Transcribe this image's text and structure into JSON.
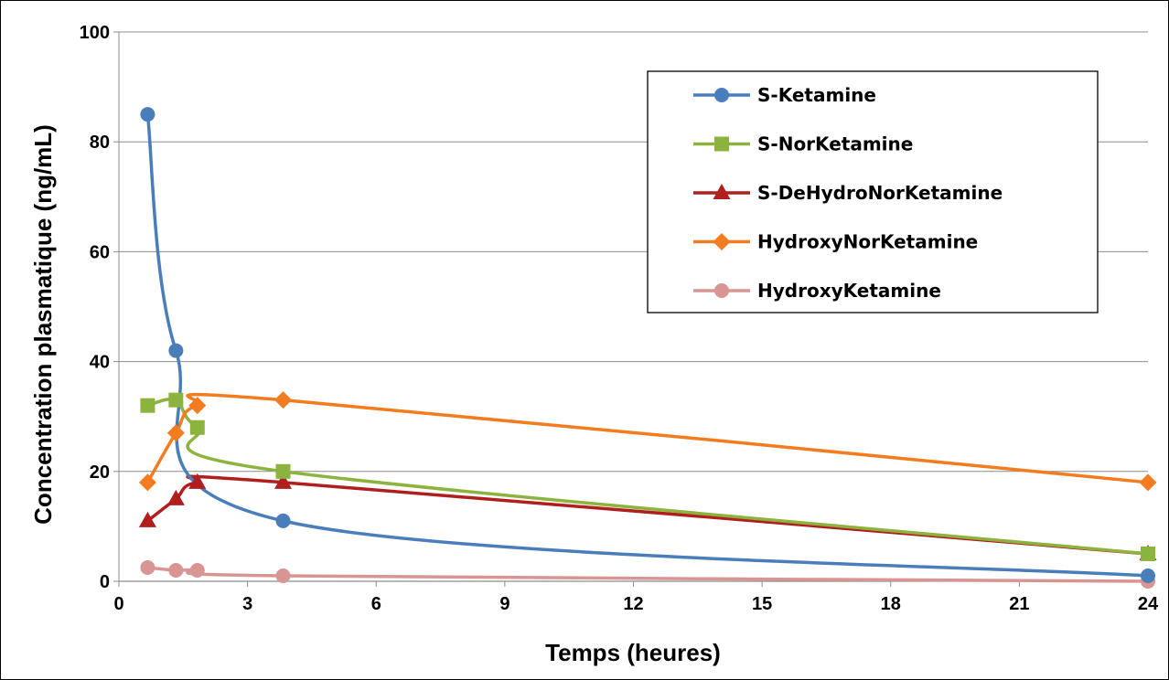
{
  "chart_data": {
    "type": "line",
    "title": "",
    "xlabel": "Temps (heures)",
    "ylabel": "Concentration plasmatique  (ng/mL)",
    "xlim": [
      0,
      24
    ],
    "ylim": [
      0,
      100
    ],
    "xticks": [
      "0",
      "3",
      "6",
      "9",
      "12",
      "15",
      "18",
      "21",
      "24"
    ],
    "yticks": [
      "0",
      "20",
      "40",
      "60",
      "80",
      "100"
    ],
    "grid": "horizontal",
    "legend_position": "top-right",
    "series": [
      {
        "name": "S-Ketamine",
        "color": "#4a7ebb",
        "marker": "circle",
        "x": [
          0.67,
          1.33,
          3.83,
          24
        ],
        "y": [
          85,
          42,
          11,
          1
        ]
      },
      {
        "name": "S-NorKetamine",
        "color": "#8db33f",
        "marker": "square",
        "x": [
          0.67,
          1.33,
          1.83,
          3.83,
          24
        ],
        "y": [
          32,
          33,
          28,
          20,
          5
        ]
      },
      {
        "name": "S-DeHydroNorKetamine",
        "color": "#b01e1e",
        "marker": "triangle",
        "x": [
          0.67,
          1.33,
          1.83,
          3.83,
          24
        ],
        "y": [
          11,
          15,
          18,
          18,
          5
        ]
      },
      {
        "name": "HydroxyNorKetamine",
        "color": "#f47c20",
        "marker": "diamond",
        "x": [
          0.67,
          1.33,
          1.83,
          3.83,
          24
        ],
        "y": [
          18,
          27,
          32,
          33,
          18
        ]
      },
      {
        "name": "HydroxyKetamine",
        "color": "#d99594",
        "marker": "circle",
        "x": [
          0.67,
          1.33,
          1.83,
          3.83,
          24
        ],
        "y": [
          2.5,
          2,
          2,
          1,
          0
        ]
      }
    ]
  }
}
